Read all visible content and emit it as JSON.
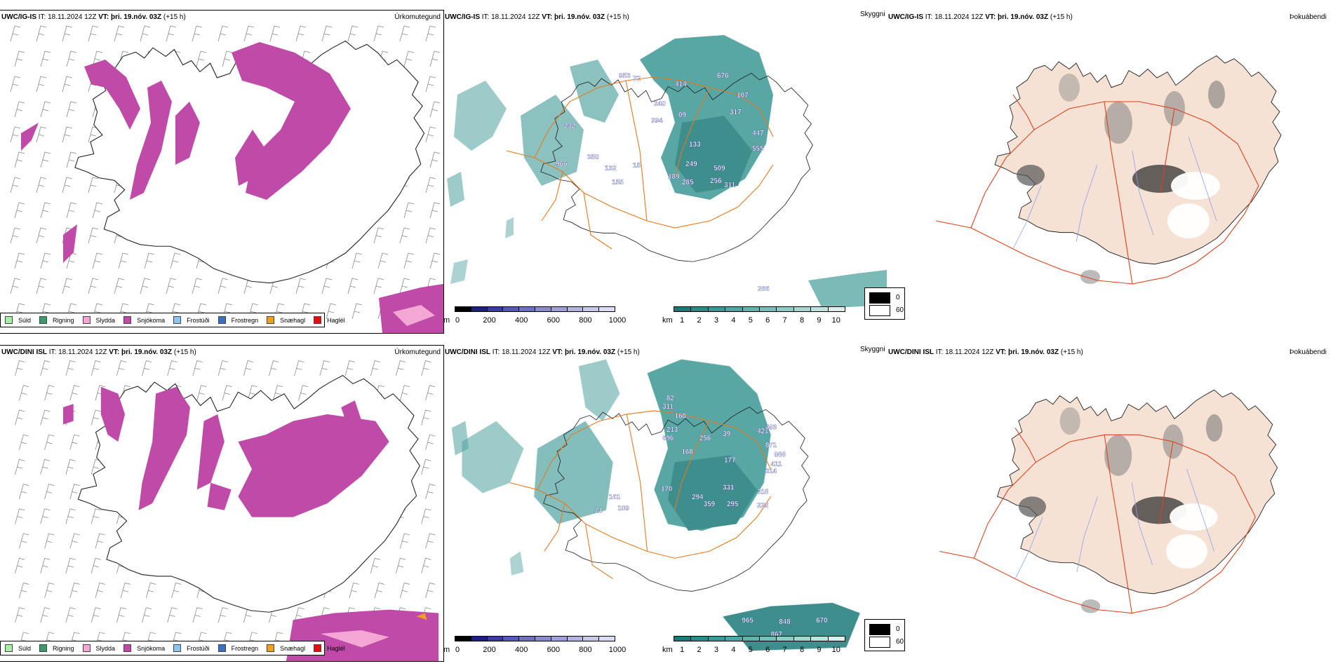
{
  "rows": [
    {
      "id": "ig",
      "model": "UWC/IG-IS",
      "it_label": "IT:",
      "it_value": "18.11.2024 12Z",
      "vt_label": "VT:",
      "vt_value": "þri. 19.nóv. 03Z",
      "lead": "(+15 h)",
      "height_labels": [
        "953",
        "72",
        "414",
        "676",
        "107",
        "317",
        "232",
        "240",
        "294",
        "09",
        "447",
        "350",
        "133",
        "555",
        "966",
        "249",
        "509",
        "132",
        "15",
        "189",
        "285",
        "256",
        "311",
        "155",
        "266"
      ]
    },
    {
      "id": "dini",
      "model": "UWC/DINI ISL",
      "it_label": "IT:",
      "it_value": "18.11.2024 12Z",
      "vt_label": "VT:",
      "vt_value": "þri. 19.nóv. 03Z",
      "lead": "(+15 h)",
      "height_labels": [
        "82",
        "311",
        "160",
        "213",
        "696",
        "256",
        "39",
        "421",
        "493",
        "168",
        "871",
        "988",
        "411",
        "177",
        "314",
        "331",
        "318",
        "294",
        "359",
        "295",
        "222",
        "161",
        "170",
        "109",
        "14",
        "965",
        "848",
        "670",
        "867"
      ]
    }
  ],
  "panel_names": {
    "precip_type": "Úrkomutegund",
    "visibility": "Skyggni",
    "fog": "Þokuábendi"
  },
  "precip_legend": [
    {
      "label": "Súld",
      "color": "#a6f0a6"
    },
    {
      "label": "Rigning",
      "color": "#3a9a6a"
    },
    {
      "label": "Slydda",
      "color": "#f4a6d4"
    },
    {
      "label": "Snjókoma",
      "color": "#c04aa8"
    },
    {
      "label": "Frostúði",
      "color": "#8ec4f0"
    },
    {
      "label": "Frostregn",
      "color": "#3a70c0"
    },
    {
      "label": "Snæhagl",
      "color": "#f0a020"
    },
    {
      "label": "Haglél",
      "color": "#e01010"
    }
  ],
  "height_scale": {
    "unit": "m",
    "ticks": [
      "0",
      "200",
      "400",
      "600",
      "800",
      "1000"
    ],
    "colors": [
      "#000000",
      "#202080",
      "#3a3aa0",
      "#5858b8",
      "#7070c0",
      "#8c8ccc",
      "#a0a0d8",
      "#b4b4e0",
      "#c8c8e8",
      "#dcdcf2"
    ]
  },
  "visibility_scale": {
    "unit": "km",
    "ticks": [
      "1",
      "2",
      "3",
      "4",
      "5",
      "6",
      "7",
      "8",
      "9",
      "10"
    ],
    "colors": [
      "#1a7a78",
      "#2a8a86",
      "#3c9894",
      "#4ea6a2",
      "#62b2ae",
      "#78bebb",
      "#8ecac6",
      "#a6d6d2",
      "#c0e2de",
      "#dcefec"
    ]
  },
  "fog_scale": {
    "top": "0",
    "bottom": "60"
  },
  "colors": {
    "snow": "#c04aa8",
    "teal": "#3c9894",
    "land": "#f5e2d4",
    "roads_orange": "#e8781a",
    "roads_red": "#e0401c",
    "rivers": "#8ca0f0"
  }
}
